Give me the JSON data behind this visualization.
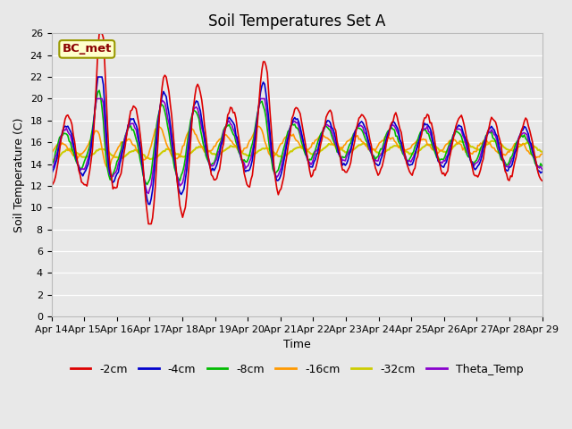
{
  "title": "Soil Temperatures Set A",
  "xlabel": "Time",
  "ylabel": "Soil Temperature (C)",
  "ylim": [
    0,
    26
  ],
  "yticks": [
    0,
    2,
    4,
    6,
    8,
    10,
    12,
    14,
    16,
    18,
    20,
    22,
    24,
    26
  ],
  "xtick_labels": [
    "Apr 14",
    "Apr 15",
    "Apr 16",
    "Apr 17",
    "Apr 18",
    "Apr 19",
    "Apr 20",
    "Apr 21",
    "Apr 22",
    "Apr 23",
    "Apr 24",
    "Apr 25",
    "Apr 26",
    "Apr 27",
    "Apr 28",
    "Apr 29"
  ],
  "series": {
    "-2cm": {
      "color": "#dd0000",
      "linewidth": 1.2
    },
    "-4cm": {
      "color": "#0000cc",
      "linewidth": 1.2
    },
    "-8cm": {
      "color": "#00bb00",
      "linewidth": 1.2
    },
    "-16cm": {
      "color": "#ff9900",
      "linewidth": 1.2
    },
    "-32cm": {
      "color": "#cccc00",
      "linewidth": 1.5
    },
    "Theta_Temp": {
      "color": "#8800cc",
      "linewidth": 1.2
    }
  },
  "annotation_text": "BC_met",
  "annotation_fg": "#8b0000",
  "annotation_bg": "#ffffcc",
  "annotation_edge": "#999900",
  "fig_bg": "#e8e8e8",
  "plot_bg": "#e8e8e8",
  "grid_color": "#ffffff",
  "title_fontsize": 12,
  "axis_label_fontsize": 9,
  "tick_fontsize": 8,
  "legend_fontsize": 9
}
